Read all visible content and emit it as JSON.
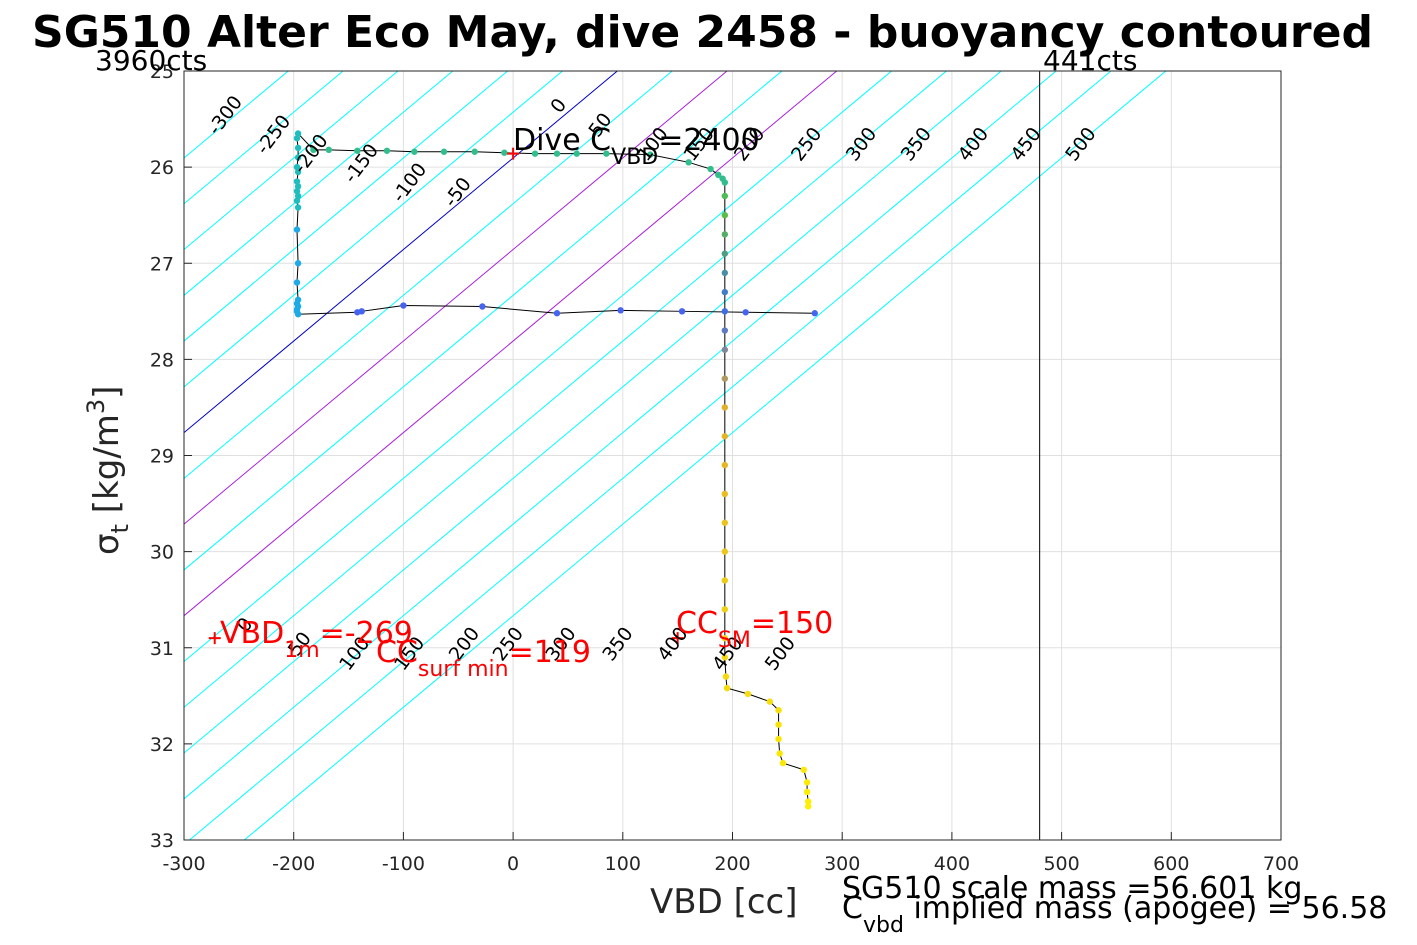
{
  "title": "SG510 Alter Eco May, dive 2458 - buoyancy contoured",
  "chart_data": {
    "type": "scatter",
    "xlabel": "VBD [cc]",
    "ylabel_main": "σ",
    "ylabel_sub": "t",
    "ylabel_rest": " [kg/m",
    "ylabel_sup": "3",
    "ylabel_end": "]",
    "xlim": [
      -300,
      700
    ],
    "ylim": [
      25,
      33
    ],
    "y_reversed": true,
    "grid": true,
    "xticks": [
      "-300",
      "-200",
      "-100",
      "0",
      "100",
      "200",
      "300",
      "400",
      "500",
      "600",
      "700"
    ],
    "yticks": [
      "25",
      "26",
      "27",
      "28",
      "29",
      "30",
      "31",
      "32",
      "33"
    ],
    "cts_left": "3960cts",
    "cts_right": "441cts",
    "cts_right_vbd": 480,
    "colors": {
      "cyan": "#00ffff",
      "blue": "#0000cc",
      "magenta": "#aa22dd",
      "red": "#ff0000"
    },
    "contour_values": [
      -300,
      -250,
      -200,
      -150,
      -100,
      -50,
      0,
      50,
      100,
      150,
      200,
      250,
      300,
      350,
      400,
      450,
      500
    ],
    "contour_labels_top": [
      {
        "text": "-300",
        "x": -258,
        "y": 25.5
      },
      {
        "text": "-250",
        "x": -214,
        "y": 25.7
      },
      {
        "text": "-200",
        "x": -180,
        "y": 25.9
      },
      {
        "text": "-150",
        "x": -134,
        "y": 26.0
      },
      {
        "text": "-100",
        "x": -90,
        "y": 26.2
      },
      {
        "text": "-50",
        "x": -46,
        "y": 26.3
      },
      {
        "text": "0",
        "x": 46,
        "y": 25.4
      },
      {
        "text": "50",
        "x": 84,
        "y": 25.6
      },
      {
        "text": "100",
        "x": 132,
        "y": 25.8
      },
      {
        "text": "150",
        "x": 174,
        "y": 25.8
      },
      {
        "text": "200",
        "x": 220,
        "y": 25.8
      },
      {
        "text": "250",
        "x": 272,
        "y": 25.8
      },
      {
        "text": "300",
        "x": 322,
        "y": 25.8
      },
      {
        "text": "350",
        "x": 372,
        "y": 25.8
      },
      {
        "text": "400",
        "x": 424,
        "y": 25.8
      },
      {
        "text": "450",
        "x": 472,
        "y": 25.8
      },
      {
        "text": "500",
        "x": 522,
        "y": 25.8
      }
    ],
    "contour_labels_bottom": [
      {
        "text": "0",
        "x": -240,
        "y": 30.8
      },
      {
        "text": "50",
        "x": -190,
        "y": 31.0
      },
      {
        "text": "100",
        "x": -140,
        "y": 31.1
      },
      {
        "text": "150",
        "x": -90,
        "y": 31.1
      },
      {
        "text": "200",
        "x": -40,
        "y": 31.0
      },
      {
        "text": "250",
        "x": 0,
        "y": 31.0
      },
      {
        "text": "300",
        "x": 48,
        "y": 31.0
      },
      {
        "text": "350",
        "x": 100,
        "y": 31.0
      },
      {
        "text": "400",
        "x": 150,
        "y": 31.0
      },
      {
        "text": "450",
        "x": 200,
        "y": 31.1
      },
      {
        "text": "500",
        "x": 248,
        "y": 31.1
      }
    ],
    "series": [
      {
        "role": "dive_profile",
        "points": [
          [
            275,
            27.52
          ],
          [
            212,
            27.51
          ],
          [
            154,
            27.5
          ],
          [
            98,
            27.49
          ],
          [
            40,
            27.52
          ],
          [
            -28,
            27.45
          ],
          [
            -100,
            27.44
          ],
          [
            -138,
            27.5
          ],
          [
            -142,
            27.51
          ],
          [
            -196,
            27.53
          ],
          [
            -197,
            27.5
          ],
          [
            -197,
            27.48
          ],
          [
            -196,
            27.45
          ],
          [
            -197,
            27.42
          ],
          [
            -196,
            27.38
          ],
          [
            -197,
            27.2
          ],
          [
            -196,
            27.0
          ],
          [
            -197,
            26.65
          ],
          [
            -196,
            26.42
          ],
          [
            -197,
            26.35
          ],
          [
            -196,
            26.3
          ],
          [
            -197,
            26.25
          ],
          [
            -196,
            26.2
          ],
          [
            -197,
            26.15
          ],
          [
            -196,
            26.05
          ],
          [
            -197,
            26.0
          ],
          [
            -196,
            25.9
          ],
          [
            -196,
            25.8
          ],
          [
            -197,
            25.7
          ],
          [
            -196,
            25.65
          ],
          [
            -182,
            25.82
          ],
          [
            -168,
            25.82
          ],
          [
            -142,
            25.83
          ],
          [
            -115,
            25.83
          ],
          [
            -90,
            25.84
          ],
          [
            -63,
            25.84
          ],
          [
            -35,
            25.84
          ],
          [
            -8,
            25.85
          ],
          [
            20,
            25.86
          ],
          [
            40,
            25.86
          ],
          [
            58,
            25.86
          ],
          [
            85,
            25.86
          ],
          [
            125,
            25.87
          ],
          [
            160,
            25.95
          ],
          [
            180,
            26.02
          ],
          [
            187,
            26.08
          ],
          [
            191,
            26.12
          ],
          [
            193,
            26.16
          ],
          [
            193,
            26.3
          ],
          [
            193,
            26.5
          ],
          [
            193,
            26.7
          ],
          [
            193,
            26.9
          ],
          [
            193,
            27.1
          ],
          [
            193,
            27.3
          ],
          [
            193,
            27.5
          ],
          [
            193,
            27.7
          ],
          [
            193,
            27.9
          ],
          [
            193,
            28.2
          ],
          [
            193,
            28.5
          ],
          [
            193,
            28.8
          ],
          [
            193,
            29.1
          ],
          [
            193,
            29.4
          ],
          [
            193,
            29.7
          ],
          [
            193,
            30.0
          ],
          [
            193,
            30.3
          ],
          [
            193,
            30.6
          ],
          [
            193,
            30.9
          ],
          [
            193,
            31.1
          ],
          [
            194,
            31.3
          ],
          [
            195,
            31.42
          ],
          [
            214,
            31.48
          ],
          [
            234,
            31.56
          ],
          [
            242,
            31.65
          ],
          [
            242,
            31.8
          ],
          [
            242,
            31.95
          ],
          [
            243,
            32.1
          ],
          [
            246,
            32.2
          ],
          [
            265,
            32.27
          ],
          [
            268,
            32.4
          ],
          [
            268,
            32.5
          ],
          [
            269,
            32.6
          ],
          [
            269,
            32.65
          ]
        ]
      }
    ],
    "dive_marker": {
      "x": 0,
      "y": 25.86
    },
    "vbd1m_marker": {
      "x": -272,
      "y": 30.9
    },
    "ccsm_marker": {
      "x": 150,
      "y": 30.9
    },
    "dive_c_label": {
      "main": "Dive C",
      "sub": "VBD",
      "rest": "=2400"
    },
    "vbd_label": {
      "main": "VBD",
      "sub": "1m",
      "rest": "=-269"
    },
    "ccsurf_label": {
      "main": "CC",
      "sub": "surf min",
      "rest": "=119"
    },
    "ccsm_label": {
      "main": "CC",
      "sub": "SM",
      "rest": "=150"
    },
    "scale_mass": "SG510 scale mass =56.601 kg",
    "implied_mass_main": "C",
    "implied_mass_sub": "vbd",
    "implied_mass_rest": " implied mass (apogee) = 56.58"
  }
}
